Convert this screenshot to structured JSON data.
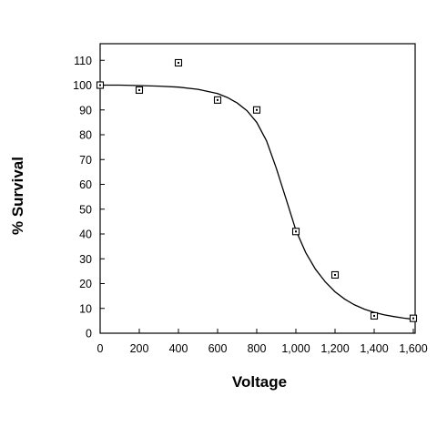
{
  "chart_data": {
    "type": "scatter",
    "title": "",
    "xlabel": "Voltage",
    "ylabel": "% Survival",
    "xlim": [
      0,
      1600
    ],
    "ylim": [
      0,
      115
    ],
    "x_ticks": [
      0,
      200,
      400,
      600,
      800,
      1000,
      1200,
      1400,
      1600
    ],
    "x_tick_labels": [
      "0",
      "200",
      "400",
      "600",
      "800",
      "1,000",
      "1,200",
      "1,400",
      "1,600"
    ],
    "y_ticks": [
      0,
      10,
      20,
      30,
      40,
      50,
      60,
      70,
      80,
      90,
      100,
      110
    ],
    "y_tick_labels": [
      "0",
      "10",
      "20",
      "30",
      "40",
      "50",
      "60",
      "70",
      "80",
      "90",
      "100",
      "110"
    ],
    "grid": false,
    "legend": "none",
    "series": [
      {
        "marker": "open-square",
        "x": [
          0,
          200,
          400,
          600,
          800,
          1000,
          1200,
          1400,
          1600
        ],
        "y": [
          100,
          98,
          109,
          94,
          90,
          41,
          23.5,
          7,
          6
        ]
      }
    ],
    "fit_curve": {
      "x": [
        0,
        100,
        200,
        300,
        400,
        500,
        600,
        650,
        700,
        750,
        800,
        850,
        900,
        950,
        1000,
        1050,
        1100,
        1150,
        1200,
        1250,
        1300,
        1350,
        1400,
        1450,
        1500,
        1550,
        1600
      ],
      "y": [
        100,
        100,
        99.8,
        99.6,
        99.2,
        98.3,
        96.6,
        95.0,
        92.8,
        89.7,
        85.0,
        77.5,
        66.5,
        54.0,
        41.5,
        32.5,
        25.8,
        20.7,
        16.7,
        13.7,
        11.4,
        9.7,
        8.4,
        7.4,
        6.7,
        6.1,
        5.6
      ]
    }
  }
}
